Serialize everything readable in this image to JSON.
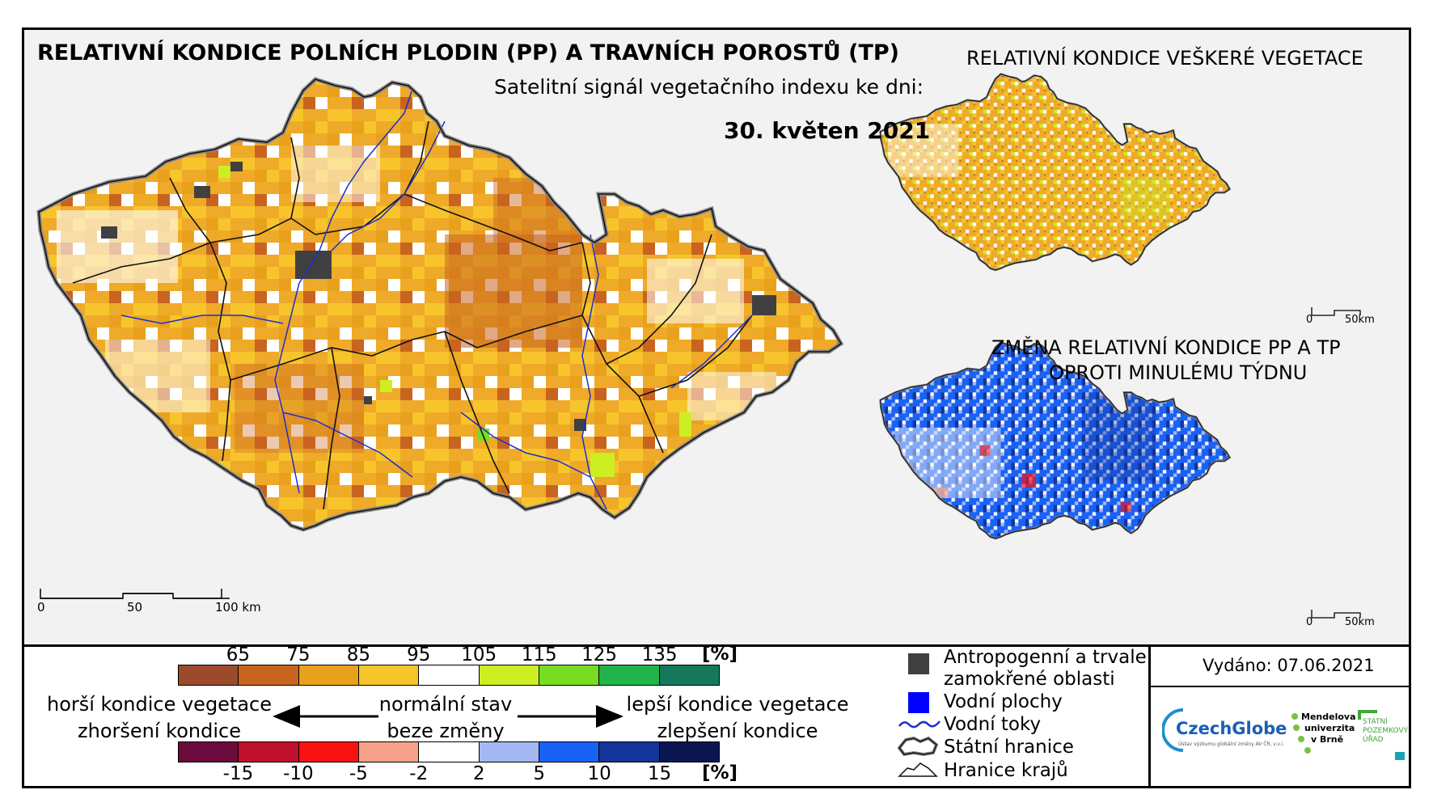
{
  "main_title": "RELATIVNÍ KONDICE POLNÍCH PLODIN (PP) A TRAVNÍCH POROSTŮ (TP)",
  "subtitle": "Satelitní signál vegetačního indexu ke dni:",
  "date": "30. květen 2021",
  "inset_top_title": "RELATIVNÍ KONDICE VEŠKERÉ VEGETACE",
  "inset_bottom_title_1": "ZMĚNA RELATIVNÍ KONDICE PP A TP",
  "inset_bottom_title_2": "OPROTI MINULÉMU TÝDNU",
  "main_scale": {
    "t0": "0",
    "t1": "50",
    "t2": "100 km"
  },
  "inset_scale": {
    "t0": "0",
    "t1": "50km"
  },
  "inset_scale_b": {
    "t0": "0",
    "t1": "50km"
  },
  "condition_scale": {
    "ticks": [
      "65",
      "75",
      "85",
      "95",
      "105",
      "115",
      "125",
      "135"
    ],
    "unit": "[%]",
    "colors": [
      "#9c4a2c",
      "#c8641f",
      "#e9a11d",
      "#f7c52b",
      "#ffffff",
      "#ccee22",
      "#77dd22",
      "#22b44a",
      "#16785a"
    ]
  },
  "change_scale": {
    "ticks": [
      "-15",
      "-10",
      "-5",
      "-2",
      "2",
      "5",
      "10",
      "15"
    ],
    "unit": "[%]",
    "colors": [
      "#6b0a3c",
      "#c0102e",
      "#f81212",
      "#f7a288",
      "#ffffff",
      "#a3b8f2",
      "#1a62f5",
      "#13349a",
      "#0a1650"
    ]
  },
  "desc": {
    "worse_veg": "horší kondice vegetace",
    "worse_change": "zhoršení kondice",
    "normal": "normální stav",
    "nochange": "beze změny",
    "better_veg": "lepší kondice vegetace",
    "better_change": "zlepšení kondice"
  },
  "legend": {
    "anthro_1": "Antropogenní a trvale",
    "anthro_2": "zamokřené oblasti",
    "water_area": "Vodní plochy",
    "rivers": "Vodní toky",
    "state_border": "Státní hranice",
    "region_border": "Hranice krajů"
  },
  "issued": "Vydáno: 07.06.2021",
  "logos": {
    "czechglobe": "CzechGlobe",
    "czechglobe_sub": "Ústav výzkumu globální změny AV ČR, v.v.i.",
    "mendel_1": "Mendelova",
    "mendel_2": "univerzita",
    "mendel_3": "v Brně",
    "spu_1": "STÁTNÍ",
    "spu_2": "POZEMKOVÝ",
    "spu_3": "ÚŘAD"
  },
  "colors": {
    "frame_bg": "#f2f2f2",
    "anthro": "#404040",
    "water": "#0000ff",
    "river": "#1a2fd0"
  }
}
